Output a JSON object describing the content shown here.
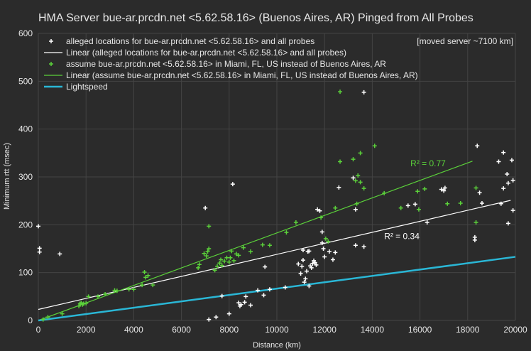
{
  "chart_data": {
    "type": "scatter",
    "title": "HMA Server bue-ar.prcdn.net <5.62.58.16> (Buenos Aires, AR) Pinged from All Probes",
    "xlabel": "Distance (km)",
    "ylabel": "Minimum rtt (msec)",
    "xlim": [
      0,
      20000
    ],
    "ylim": [
      0,
      600
    ],
    "xticks": [
      0,
      2000,
      4000,
      6000,
      8000,
      10000,
      12000,
      14000,
      16000,
      18000,
      20000
    ],
    "yticks": [
      0,
      100,
      200,
      300,
      400,
      500,
      600
    ],
    "grid": true,
    "legend_position": "top",
    "annotation": "[moved server ~7100 km]",
    "colors": {
      "background": "#2b2b2b",
      "white": "#ffffff",
      "green": "#5bd13a",
      "cyan": "#2ab7d6",
      "grid": "#444444"
    },
    "series": [
      {
        "name": "alleged locations for bue-ar.prcdn.net <5.62.58.16> and all probes",
        "kind": "points",
        "color": "#ffffff",
        "points": [
          [
            0,
            197
          ],
          [
            50,
            151
          ],
          [
            50,
            143
          ],
          [
            900,
            139
          ],
          [
            7000,
            235
          ],
          [
            7150,
            2
          ],
          [
            7450,
            7
          ],
          [
            7700,
            51
          ],
          [
            8000,
            14
          ],
          [
            8150,
            285
          ],
          [
            8400,
            37
          ],
          [
            8450,
            30
          ],
          [
            8500,
            33
          ],
          [
            8650,
            38
          ],
          [
            8700,
            50
          ],
          [
            8900,
            32
          ],
          [
            9200,
            63
          ],
          [
            9450,
            53
          ],
          [
            9500,
            112
          ],
          [
            9700,
            65
          ],
          [
            10350,
            69
          ],
          [
            10900,
            118
          ],
          [
            11000,
            98
          ],
          [
            11050,
            113
          ],
          [
            11100,
            126
          ],
          [
            11100,
            147
          ],
          [
            11150,
            80
          ],
          [
            11200,
            87
          ],
          [
            11250,
            103
          ],
          [
            11300,
            144
          ],
          [
            11350,
            145
          ],
          [
            11350,
            72
          ],
          [
            11400,
            114
          ],
          [
            11450,
            110
          ],
          [
            11500,
            119
          ],
          [
            11550,
            125
          ],
          [
            11600,
            121
          ],
          [
            11650,
            116
          ],
          [
            11700,
            232
          ],
          [
            11800,
            229
          ],
          [
            11900,
            185
          ],
          [
            11900,
            162
          ],
          [
            11950,
            150
          ],
          [
            12000,
            133
          ],
          [
            12200,
            144
          ],
          [
            12350,
            127
          ],
          [
            12450,
            142
          ],
          [
            12600,
            278
          ],
          [
            13200,
            298
          ],
          [
            13300,
            232
          ],
          [
            13300,
            157
          ],
          [
            13650,
            477
          ],
          [
            13650,
            154
          ],
          [
            15500,
            240
          ],
          [
            15800,
            243
          ],
          [
            16300,
            205
          ],
          [
            16900,
            274
          ],
          [
            17000,
            271
          ],
          [
            17050,
            277
          ],
          [
            18300,
            174
          ],
          [
            18300,
            168
          ],
          [
            18400,
            365
          ],
          [
            18500,
            267
          ],
          [
            18600,
            245
          ],
          [
            19300,
            332
          ],
          [
            19400,
            244
          ],
          [
            19500,
            276
          ],
          [
            19500,
            351
          ],
          [
            19650,
            306
          ],
          [
            19700,
            287
          ],
          [
            19700,
            203
          ],
          [
            19850,
            335
          ],
          [
            19900,
            230
          ],
          [
            19900,
            293
          ]
        ]
      },
      {
        "name": "Linear (alleged locations for bue-ar.prcdn.net <5.62.58.16> and all probes)",
        "kind": "trendline",
        "color": "#ffffff",
        "x": [
          0,
          19800
        ],
        "y": [
          23,
          251
        ]
      },
      {
        "name": "assume bue-ar.prcdn.net <5.62.58.16> in Miami, FL, US instead of Buenos Aires, AR",
        "kind": "points",
        "color": "#5bd13a",
        "points": [
          [
            200,
            2
          ],
          [
            400,
            7
          ],
          [
            1000,
            14
          ],
          [
            1700,
            30
          ],
          [
            1750,
            35
          ],
          [
            1800,
            37
          ],
          [
            1850,
            33
          ],
          [
            1900,
            35
          ],
          [
            2000,
            36
          ],
          [
            2100,
            50
          ],
          [
            2500,
            50
          ],
          [
            2800,
            55
          ],
          [
            3200,
            63
          ],
          [
            3300,
            62
          ],
          [
            3800,
            65
          ],
          [
            4000,
            65
          ],
          [
            4350,
            74
          ],
          [
            4450,
            101
          ],
          [
            4500,
            90
          ],
          [
            4600,
            94
          ],
          [
            4800,
            74
          ],
          [
            6700,
            110
          ],
          [
            6750,
            117
          ],
          [
            6950,
            140
          ],
          [
            7050,
            135
          ],
          [
            7100,
            144
          ],
          [
            7150,
            150
          ],
          [
            7150,
            197
          ],
          [
            7400,
            105
          ],
          [
            7500,
            113
          ],
          [
            7600,
            120
          ],
          [
            7650,
            127
          ],
          [
            7700,
            115
          ],
          [
            7800,
            124
          ],
          [
            7900,
            131
          ],
          [
            8000,
            122
          ],
          [
            8050,
            131
          ],
          [
            8100,
            145
          ],
          [
            8200,
            125
          ],
          [
            8300,
            139
          ],
          [
            8400,
            136
          ],
          [
            8600,
            152
          ],
          [
            8900,
            144
          ],
          [
            9400,
            158
          ],
          [
            9700,
            157
          ],
          [
            10400,
            184
          ],
          [
            10800,
            205
          ],
          [
            11850,
            215
          ],
          [
            12050,
            171
          ],
          [
            12150,
            165
          ],
          [
            12450,
            235
          ],
          [
            12650,
            332
          ],
          [
            12650,
            478
          ],
          [
            13200,
            337
          ],
          [
            13300,
            292
          ],
          [
            13350,
            244
          ],
          [
            13400,
            303
          ],
          [
            13500,
            289
          ],
          [
            13650,
            276
          ],
          [
            13500,
            350
          ],
          [
            14100,
            365
          ],
          [
            14500,
            266
          ],
          [
            15200,
            235
          ],
          [
            15900,
            270
          ],
          [
            15950,
            232
          ],
          [
            16200,
            275
          ],
          [
            17150,
            244
          ],
          [
            17700,
            245
          ],
          [
            18350,
            277
          ],
          [
            18350,
            205
          ]
        ]
      },
      {
        "name": "Linear (assume bue-ar.prcdn.net <5.62.58.16> in Miami, FL, US instead of Buenos Aires, AR)",
        "kind": "trendline",
        "color": "#5bd13a",
        "x": [
          0,
          18200
        ],
        "y": [
          0,
          333
        ]
      },
      {
        "name": "Lightspeed",
        "kind": "line",
        "color": "#2ab7d6",
        "x": [
          0,
          20000
        ],
        "y": [
          0,
          133
        ]
      }
    ],
    "r2_labels": [
      {
        "text": "R² = 0.77",
        "x": 15600,
        "y": 322,
        "color": "#5bd13a"
      },
      {
        "text": "R² = 0.34",
        "x": 14500,
        "y": 170,
        "color": "#ffffff"
      }
    ]
  }
}
